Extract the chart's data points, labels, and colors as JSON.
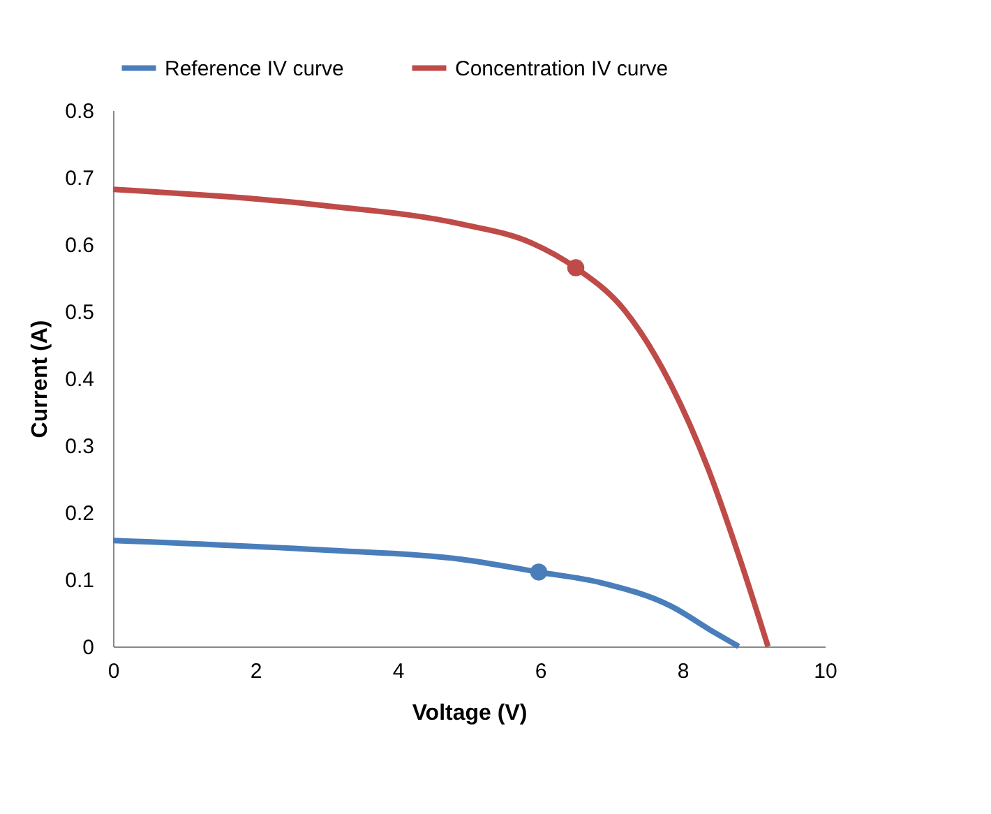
{
  "chart_data": {
    "type": "line",
    "xlabel": "Voltage (V)",
    "ylabel": "Current (A)",
    "xlim": [
      0,
      10
    ],
    "xticks": [
      0,
      2,
      4,
      6,
      8,
      10
    ],
    "ylim": [
      0,
      0.8
    ],
    "yticks": [
      0,
      0.1,
      0.2,
      0.3,
      0.4,
      0.5,
      0.6,
      0.7,
      0.8
    ],
    "grid": false,
    "legend": "top",
    "marker": "none",
    "series": [
      {
        "name": "Reference IV curve",
        "color": "#4a7ebb",
        "x": [
          0,
          2.95,
          4.9,
          5.98,
          6.86,
          7.84,
          8.43,
          8.79
        ],
        "values": [
          0.158,
          0.144,
          0.13,
          0.111,
          0.095,
          0.06,
          0.022,
          0
        ]
      },
      {
        "name": "Concentration IV curve",
        "color": "#be4b48",
        "x": [
          0,
          2.95,
          4.9,
          5.88,
          6.5,
          7.19,
          7.84,
          8.36,
          8.82,
          9.2
        ],
        "values": [
          0.682,
          0.658,
          0.63,
          0.602,
          0.565,
          0.501,
          0.39,
          0.265,
          0.126,
          0
        ]
      },
      {
        "type": "scatter",
        "marker": "circle",
        "color": "#4a7ebb",
        "x": [
          5.98
        ],
        "values": [
          0.111
        ]
      },
      {
        "type": "scatter",
        "marker": "circle",
        "color": "#be4b48",
        "x": [
          6.5
        ],
        "values": [
          0.565
        ]
      }
    ]
  }
}
